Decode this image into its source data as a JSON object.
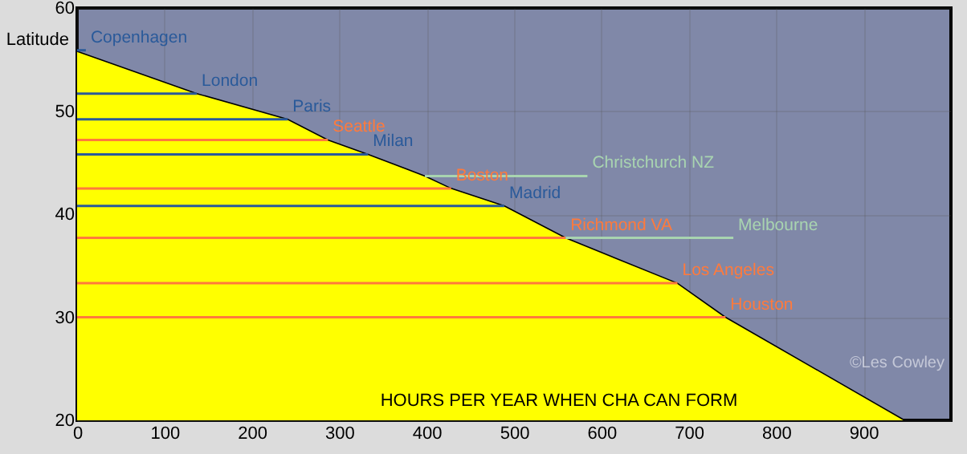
{
  "chart_data": {
    "type": "line",
    "xlabel": "HOURS PER YEAR WHEN CHA CAN FORM",
    "ylabel": "Latitude",
    "annotations": [
      "©Les Cowley"
    ],
    "xlim": [
      0,
      1000
    ],
    "ylim": [
      20,
      60
    ],
    "xticks": [
      0,
      100,
      200,
      300,
      400,
      500,
      600,
      700,
      800,
      900
    ],
    "yticks": [
      20,
      30,
      40,
      50,
      60
    ],
    "grid": true,
    "series": [
      {
        "type": "area",
        "color": "#ffff00",
        "x": [
          0,
          137,
          241,
          287,
          333,
          398,
          428,
          489,
          559,
          687,
          742,
          947
        ],
        "values": [
          55.8,
          51.7,
          49.2,
          47.2,
          45.8,
          43.7,
          42.5,
          40.8,
          37.7,
          33.3,
          30,
          20
        ]
      },
      {
        "name": "Copenhagen",
        "color": "#2a5a9a",
        "x": [
          0,
          10
        ],
        "values": [
          55.9,
          55.9
        ]
      },
      {
        "name": "London",
        "color": "#2a5a9a",
        "x": [
          0,
          137
        ],
        "values": [
          51.7,
          51.7
        ]
      },
      {
        "name": "Paris",
        "color": "#2a5a9a",
        "x": [
          0,
          241
        ],
        "values": [
          49.2,
          49.2
        ]
      },
      {
        "name": "Seattle",
        "color": "#ff7a3c",
        "x": [
          0,
          287
        ],
        "values": [
          47.2,
          47.2
        ]
      },
      {
        "name": "Milan",
        "color": "#2a5a9a",
        "x": [
          0,
          333
        ],
        "values": [
          45.8,
          45.8
        ]
      },
      {
        "name": "Christchurch NZ",
        "color": "#a8d4b0",
        "x": [
          398,
          584
        ],
        "values": [
          43.7,
          43.7
        ]
      },
      {
        "name": "Boston",
        "color": "#ff7a3c",
        "x": [
          0,
          428
        ],
        "values": [
          42.5,
          42.5
        ]
      },
      {
        "name": "Madrid",
        "color": "#2a5a9a",
        "x": [
          0,
          489
        ],
        "values": [
          40.8,
          40.8
        ]
      },
      {
        "name": "Richmond VA",
        "color": "#ff7a3c",
        "x": [
          0,
          559
        ],
        "values": [
          37.7,
          37.7
        ]
      },
      {
        "name": "Melbourne",
        "color": "#a8d4b0",
        "x": [
          559,
          751
        ],
        "values": [
          37.7,
          37.7
        ]
      },
      {
        "name": "Los Angeles",
        "color": "#ff7a3c",
        "x": [
          0,
          687
        ],
        "values": [
          33.3,
          33.3
        ]
      },
      {
        "name": "Houston",
        "color": "#ff7a3c",
        "x": [
          0,
          742
        ],
        "values": [
          30,
          30
        ]
      }
    ]
  }
}
